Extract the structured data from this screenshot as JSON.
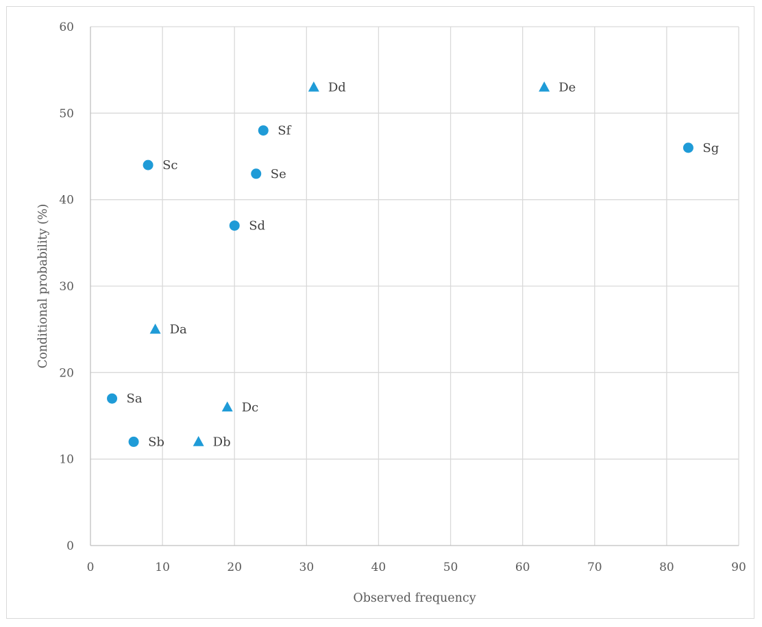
{
  "chart_data": {
    "type": "scatter",
    "title": "",
    "xlabel": "Observed frequency",
    "ylabel": "Conditional probability (%)",
    "xlim": [
      0,
      90
    ],
    "ylim": [
      0,
      60
    ],
    "x_ticks": [
      0,
      10,
      20,
      30,
      40,
      50,
      60,
      70,
      80,
      90
    ],
    "y_ticks": [
      0,
      10,
      20,
      30,
      40,
      50,
      60
    ],
    "grid": true,
    "marker_color": "#1f9bd7",
    "series": [
      {
        "marker": "circle",
        "points": [
          {
            "label": "Sa",
            "x": 3,
            "y": 17
          },
          {
            "label": "Sb",
            "x": 6,
            "y": 12
          },
          {
            "label": "Sc",
            "x": 8,
            "y": 44
          },
          {
            "label": "Sd",
            "x": 20,
            "y": 37
          },
          {
            "label": "Se",
            "x": 23,
            "y": 43
          },
          {
            "label": "Sf",
            "x": 24,
            "y": 48
          },
          {
            "label": "Sg",
            "x": 83,
            "y": 46
          }
        ]
      },
      {
        "marker": "triangle",
        "points": [
          {
            "label": "Da",
            "x": 9,
            "y": 25
          },
          {
            "label": "Db",
            "x": 15,
            "y": 12
          },
          {
            "label": "Dc",
            "x": 19,
            "y": 16
          },
          {
            "label": "Dd",
            "x": 31,
            "y": 53
          },
          {
            "label": "De",
            "x": 63,
            "y": 53
          }
        ]
      }
    ]
  }
}
